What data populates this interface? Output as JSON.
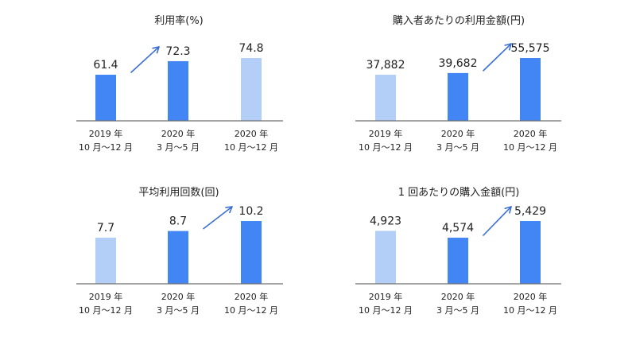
{
  "colors": {
    "strong": "#4285f4",
    "light": "#b3cff8",
    "arrow": "#3b6fd6",
    "axis": "#6f6f6f"
  },
  "chart_data": [
    {
      "type": "bar",
      "title": "利用率(%)",
      "categories": [
        [
          "2019 年",
          "10 月〜12 月"
        ],
        [
          "2020 年",
          "3 月〜5 月"
        ],
        [
          "2020 年",
          "10 月〜12 月"
        ]
      ],
      "values": [
        61.4,
        72.3,
        74.8
      ],
      "value_labels": [
        "61.4",
        "72.3",
        "74.8"
      ],
      "highlight": [
        "strong",
        "strong",
        "light"
      ],
      "arrow": [
        0,
        1
      ]
    },
    {
      "type": "bar",
      "title": "購入者あたりの利用金額(円)",
      "categories": [
        [
          "2019 年",
          "10 月〜12 月"
        ],
        [
          "2020 年",
          "3 月〜5 月"
        ],
        [
          "2020 年",
          "10 月〜12 月"
        ]
      ],
      "values": [
        37882,
        39682,
        55575
      ],
      "value_labels": [
        "37,882",
        "39,682",
        "55,575"
      ],
      "highlight": [
        "light",
        "strong",
        "strong"
      ],
      "arrow": [
        1,
        2
      ]
    },
    {
      "type": "bar",
      "title": "平均利用回数(回)",
      "categories": [
        [
          "2019 年",
          "10 月〜12 月"
        ],
        [
          "2020 年",
          "3 月〜5 月"
        ],
        [
          "2020 年",
          "10 月〜12 月"
        ]
      ],
      "values": [
        7.7,
        8.7,
        10.2
      ],
      "value_labels": [
        "7.7",
        "8.7",
        "10.2"
      ],
      "highlight": [
        "light",
        "strong",
        "strong"
      ],
      "arrow": [
        1,
        2
      ]
    },
    {
      "type": "bar",
      "title": "1 回あたりの購入金額(円)",
      "categories": [
        [
          "2019 年",
          "10 月〜12 月"
        ],
        [
          "2020 年",
          "3 月〜5 月"
        ],
        [
          "2020 年",
          "10 月〜12 月"
        ]
      ],
      "values": [
        4923,
        4574,
        5429
      ],
      "value_labels": [
        "4,923",
        "4,574",
        "5,429"
      ],
      "highlight": [
        "light",
        "strong",
        "strong"
      ],
      "arrow": [
        1,
        2
      ]
    }
  ]
}
